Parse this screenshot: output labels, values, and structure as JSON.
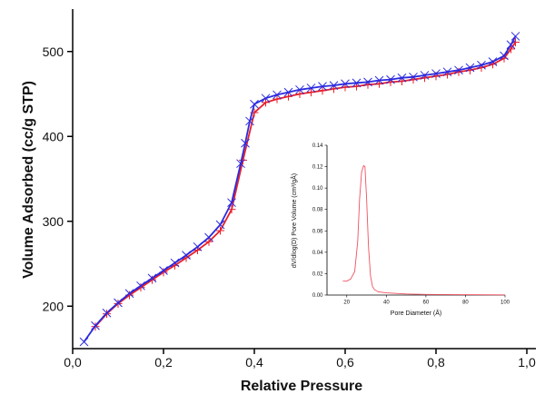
{
  "chart_data": [
    {
      "type": "line",
      "title": "",
      "xlabel": "Relative Pressure",
      "ylabel": "Volume Adsorbed (cc/g STP)",
      "xlim": [
        0.0,
        1.0
      ],
      "ylim": [
        150,
        550
      ],
      "x_ticks": [
        "0,0",
        "0,2",
        "0,4",
        "0,6",
        "0,8",
        "1,0"
      ],
      "y_ticks": [
        "200",
        "300",
        "400",
        "500"
      ],
      "grid": false,
      "legend": "none",
      "series": [
        {
          "color": "#e8202a",
          "marker": "plus",
          "points": [
            [
              0.05,
              176
            ],
            [
              0.075,
              191
            ],
            [
              0.1,
              203
            ],
            [
              0.125,
              213
            ],
            [
              0.15,
              222
            ],
            [
              0.175,
              231
            ],
            [
              0.2,
              240
            ],
            [
              0.225,
              248
            ],
            [
              0.25,
              257
            ],
            [
              0.275,
              266
            ],
            [
              0.3,
              276
            ],
            [
              0.325,
              289
            ],
            [
              0.35,
              314
            ],
            [
              0.375,
              372
            ],
            [
              0.4,
              428
            ],
            [
              0.425,
              440
            ],
            [
              0.45,
              444
            ],
            [
              0.475,
              447
            ],
            [
              0.5,
              450
            ],
            [
              0.525,
              452
            ],
            [
              0.55,
              454
            ],
            [
              0.575,
              456
            ],
            [
              0.6,
              458
            ],
            [
              0.625,
              459
            ],
            [
              0.65,
              461
            ],
            [
              0.675,
              462
            ],
            [
              0.7,
              464
            ],
            [
              0.725,
              465
            ],
            [
              0.75,
              467
            ],
            [
              0.775,
              469
            ],
            [
              0.8,
              471
            ],
            [
              0.825,
              473
            ],
            [
              0.85,
              476
            ],
            [
              0.875,
              478
            ],
            [
              0.9,
              481
            ],
            [
              0.925,
              485
            ],
            [
              0.95,
              492
            ],
            [
              0.965,
              503
            ],
            [
              0.975,
              511
            ]
          ]
        },
        {
          "color": "#2a2ae0",
          "marker": "x",
          "points": [
            [
              0.025,
              158
            ],
            [
              0.05,
              177
            ],
            [
              0.075,
              192
            ],
            [
              0.1,
              204
            ],
            [
              0.125,
              215
            ],
            [
              0.15,
              224
            ],
            [
              0.175,
              233
            ],
            [
              0.2,
              242
            ],
            [
              0.225,
              251
            ],
            [
              0.25,
              260
            ],
            [
              0.275,
              270
            ],
            [
              0.3,
              281
            ],
            [
              0.325,
              296
            ],
            [
              0.35,
              322
            ],
            [
              0.37,
              368
            ],
            [
              0.38,
              392
            ],
            [
              0.39,
              418
            ],
            [
              0.4,
              438
            ],
            [
              0.425,
              445
            ],
            [
              0.45,
              449
            ],
            [
              0.475,
              452
            ],
            [
              0.5,
              455
            ],
            [
              0.525,
              457
            ],
            [
              0.55,
              459
            ],
            [
              0.575,
              460
            ],
            [
              0.6,
              462
            ],
            [
              0.625,
              463
            ],
            [
              0.65,
              464
            ],
            [
              0.675,
              466
            ],
            [
              0.7,
              467
            ],
            [
              0.725,
              469
            ],
            [
              0.75,
              470
            ],
            [
              0.775,
              472
            ],
            [
              0.8,
              474
            ],
            [
              0.825,
              476
            ],
            [
              0.85,
              478
            ],
            [
              0.875,
              481
            ],
            [
              0.9,
              484
            ],
            [
              0.925,
              488
            ],
            [
              0.95,
              495
            ],
            [
              0.965,
              508
            ],
            [
              0.975,
              518
            ]
          ]
        }
      ]
    },
    {
      "type": "line",
      "title": "",
      "xlabel": "Pore Diameter (Å)",
      "ylabel": "dV/dlog(D) Pore Volume (cm³/gÅ)",
      "xlim": [
        10,
        100
      ],
      "ylim": [
        0,
        0.14
      ],
      "x_ticks": [
        "20",
        "40",
        "60",
        "80",
        "100"
      ],
      "y_ticks": [
        "0.00",
        "0.02",
        "0.04",
        "0.06",
        "0.08",
        "0.10",
        "0.12",
        "0.14"
      ],
      "grid": false,
      "legend": "none",
      "series": [
        {
          "color": "#f05060",
          "points": [
            [
              18,
              0.013
            ],
            [
              20,
              0.013
            ],
            [
              22,
              0.015
            ],
            [
              24,
              0.022
            ],
            [
              25.5,
              0.05
            ],
            [
              26.5,
              0.09
            ],
            [
              27.5,
              0.115
            ],
            [
              28.5,
              0.121
            ],
            [
              29.2,
              0.12
            ],
            [
              30,
              0.09
            ],
            [
              31,
              0.045
            ],
            [
              32,
              0.018
            ],
            [
              33,
              0.008
            ],
            [
              34,
              0.005
            ],
            [
              36,
              0.003
            ],
            [
              40,
              0.002
            ],
            [
              50,
              0.001
            ],
            [
              60,
              0.0006
            ],
            [
              80,
              0.0003
            ],
            [
              100,
              0.0002
            ]
          ]
        }
      ]
    }
  ]
}
